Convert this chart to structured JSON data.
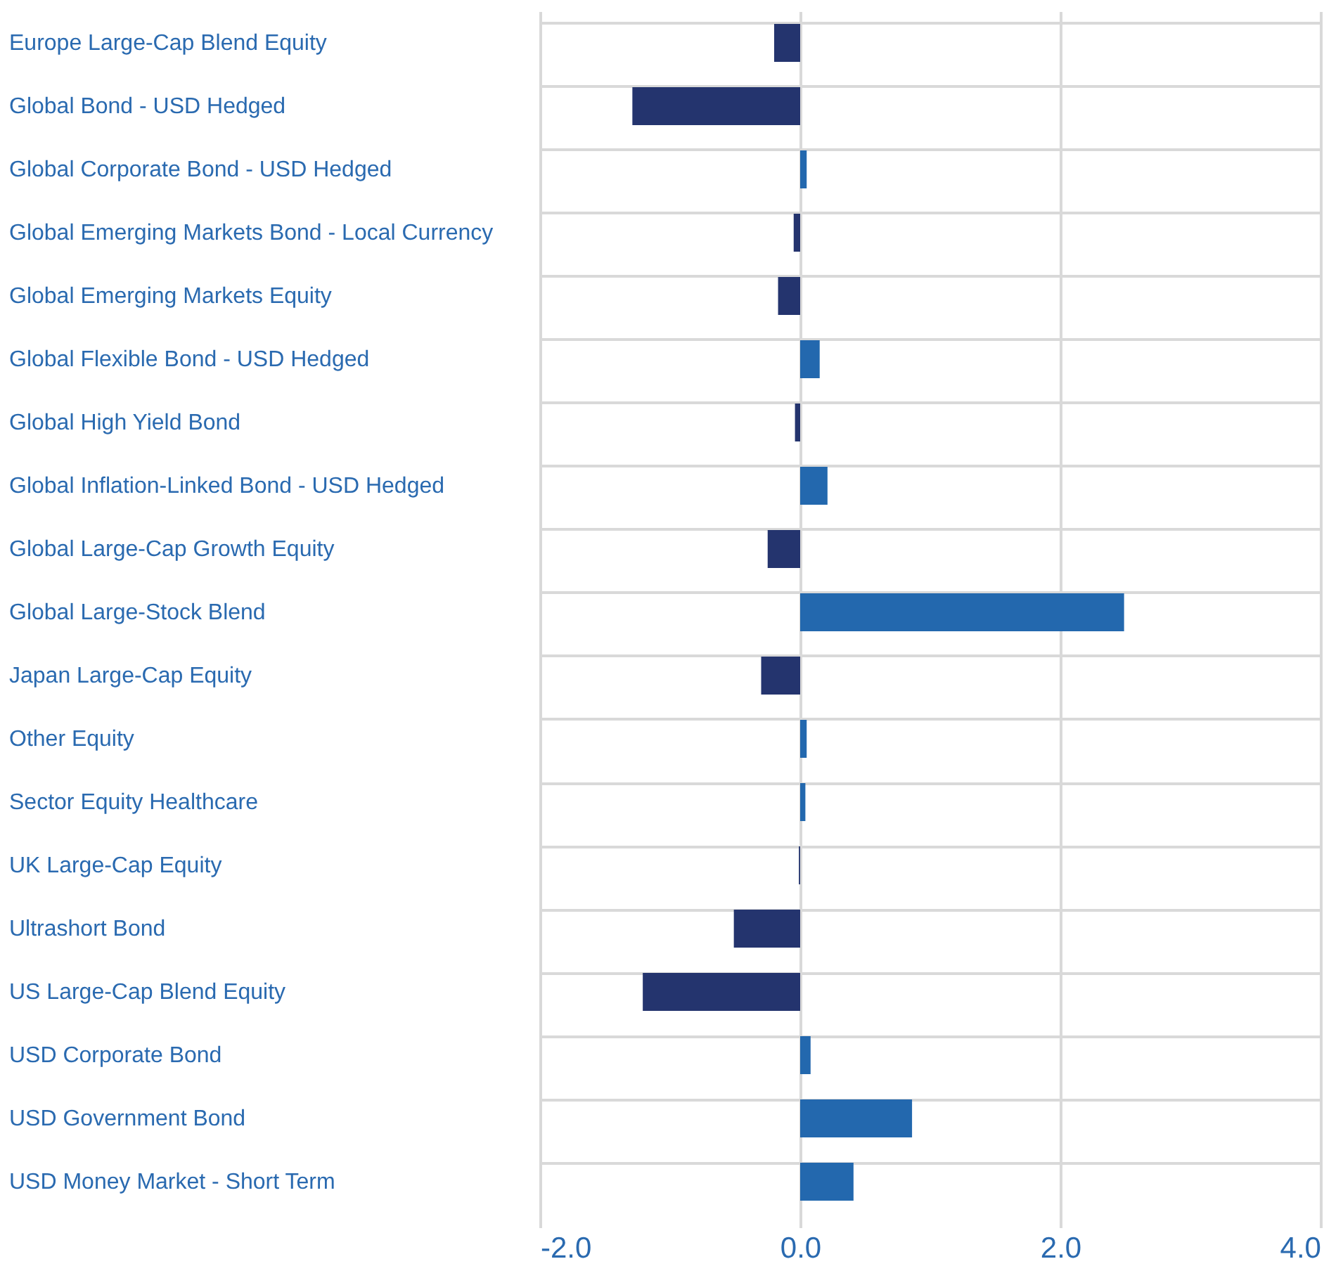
{
  "chart_data": {
    "type": "bar",
    "orientation": "horizontal",
    "categories": [
      "Europe Large-Cap Blend Equity",
      "Global Bond - USD Hedged",
      "Global Corporate Bond - USD Hedged",
      "Global Emerging Markets Bond - Local Currency",
      "Global Emerging Markets Equity",
      "Global Flexible Bond - USD Hedged",
      "Global High Yield Bond",
      "Global Inflation-Linked Bond - USD Hedged",
      "Global Large-Cap Growth Equity",
      "Global Large-Stock Blend",
      "Japan Large-Cap Equity",
      "Other Equity",
      "Sector Equity Healthcare",
      "UK Large-Cap Equity",
      "Ultrashort Bond",
      "US Large-Cap Blend Equity",
      "USD Corporate Bond",
      "USD Government Bond",
      "USD Money Market - Short Term"
    ],
    "values": [
      -0.2,
      -1.29,
      0.05,
      -0.05,
      -0.17,
      0.15,
      -0.04,
      0.21,
      -0.25,
      2.49,
      -0.3,
      0.05,
      0.04,
      -0.01,
      -0.51,
      -1.21,
      0.08,
      0.86,
      0.41
    ],
    "colors": [
      "#24346e",
      "#24346e",
      "#2368ae",
      "#24346e",
      "#24346e",
      "#2368ae",
      "#24346e",
      "#2368ae",
      "#24346e",
      "#2368ae",
      "#24346e",
      "#2368ae",
      "#2368ae",
      "#24346e",
      "#24346e",
      "#24346e",
      "#2368ae",
      "#2368ae",
      "#2368ae"
    ],
    "xlim": [
      -2,
      4
    ],
    "xticks": [
      {
        "value": -2,
        "label": "-2.0"
      },
      {
        "value": 0,
        "label": "0.0"
      },
      {
        "value": 2,
        "label": "2.0"
      },
      {
        "value": 4,
        "label": "4.0"
      }
    ],
    "grid": true
  }
}
